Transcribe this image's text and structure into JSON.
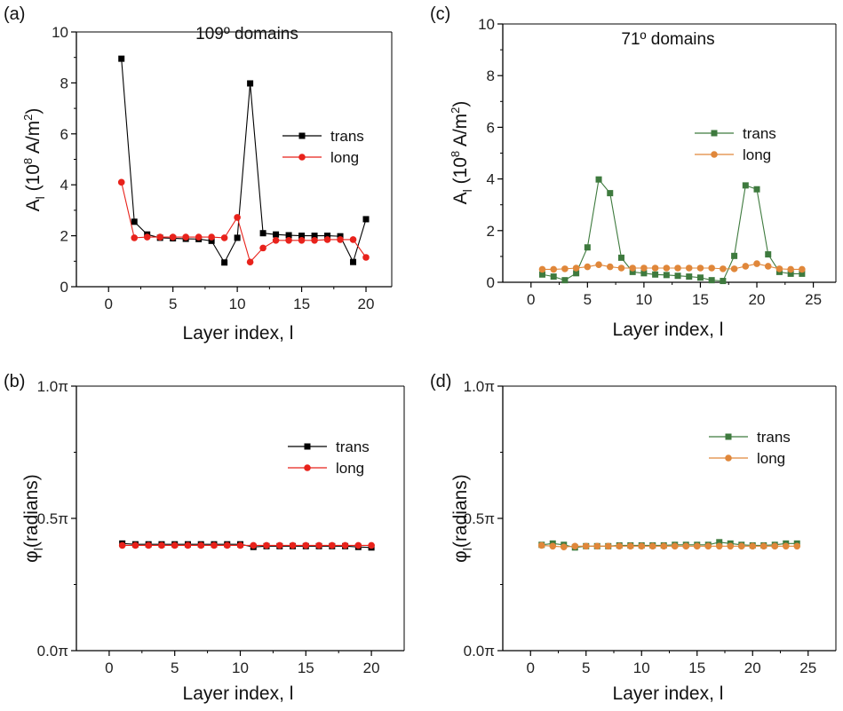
{
  "chart_data": [
    {
      "panel_label": "(a)",
      "type": "line",
      "annotation": "109º domains",
      "xlabel": "Layer index, l",
      "ylabel": "A_l (10^8 A/m^2)",
      "ylabel_parts": {
        "main": "A",
        "sub": "l",
        "rest": " (10",
        "sup": "8",
        "rest2": " A/m",
        "sup2": "2",
        "rest3": ")"
      },
      "xlim": [
        -2.5,
        22
      ],
      "ylim": [
        0,
        10
      ],
      "xticks": [
        0,
        5,
        10,
        15,
        20
      ],
      "yticks": [
        0,
        2,
        4,
        6,
        8,
        10
      ],
      "ytick_labels": [
        "0",
        "2",
        "4",
        "6",
        "8",
        "10"
      ],
      "grid": false,
      "legend_position": "right",
      "x": [
        1,
        2,
        3,
        4,
        5,
        6,
        7,
        8,
        9,
        10,
        11,
        12,
        13,
        14,
        15,
        16,
        17,
        18,
        19,
        20
      ],
      "series": [
        {
          "name": "trans",
          "color": "#000000",
          "marker": "square",
          "values": [
            8.95,
            2.55,
            2.05,
            1.92,
            1.9,
            1.88,
            1.87,
            1.8,
            0.95,
            1.92,
            7.98,
            2.1,
            2.05,
            2.02,
            2.0,
            2.0,
            2.0,
            1.98,
            0.97,
            2.65
          ]
        },
        {
          "name": "long",
          "color": "#e8221b",
          "marker": "circle",
          "values": [
            4.1,
            1.92,
            1.95,
            1.95,
            1.95,
            1.95,
            1.95,
            1.95,
            1.92,
            2.72,
            0.97,
            1.52,
            1.82,
            1.82,
            1.82,
            1.82,
            1.85,
            1.85,
            1.85,
            1.15
          ]
        }
      ]
    },
    {
      "panel_label": "(c)",
      "type": "line",
      "annotation": "71º domains",
      "xlabel": "Layer index, l",
      "ylabel": "A_l (10^8 A/m^2)",
      "ylabel_parts": {
        "main": "A",
        "sub": "l",
        "rest": " (10",
        "sup": "8",
        "rest2": " A/m",
        "sup2": "2",
        "rest3": ")"
      },
      "xlim": [
        -2.5,
        27
      ],
      "ylim": [
        0,
        10
      ],
      "xticks": [
        0,
        5,
        10,
        15,
        20,
        25
      ],
      "yticks": [
        0,
        2,
        4,
        6,
        8,
        10
      ],
      "ytick_labels": [
        "0",
        "2",
        "4",
        "6",
        "8",
        "10"
      ],
      "grid": false,
      "legend_position": "right",
      "x": [
        1,
        2,
        3,
        4,
        5,
        6,
        7,
        8,
        9,
        10,
        11,
        12,
        13,
        14,
        15,
        16,
        17,
        18,
        19,
        20,
        21,
        22,
        23,
        24
      ],
      "series": [
        {
          "name": "trans",
          "color": "#3e7a3e",
          "marker": "square",
          "values": [
            0.3,
            0.22,
            0.08,
            0.35,
            1.35,
            3.98,
            3.45,
            0.95,
            0.4,
            0.35,
            0.3,
            0.28,
            0.25,
            0.22,
            0.18,
            0.08,
            0.05,
            1.02,
            3.75,
            3.6,
            1.08,
            0.4,
            0.33,
            0.33
          ]
        },
        {
          "name": "long",
          "color": "#e0873a",
          "marker": "circle",
          "values": [
            0.5,
            0.5,
            0.52,
            0.55,
            0.6,
            0.68,
            0.6,
            0.55,
            0.55,
            0.55,
            0.55,
            0.55,
            0.55,
            0.55,
            0.55,
            0.55,
            0.52,
            0.52,
            0.62,
            0.72,
            0.62,
            0.52,
            0.5,
            0.5
          ]
        }
      ]
    },
    {
      "panel_label": "(b)",
      "type": "line",
      "annotation": "",
      "xlabel": "Layer index, l",
      "ylabel": "φ_l (radians)",
      "ylabel_parts": {
        "main": "φ",
        "sub": "l",
        "rest": "(radians)"
      },
      "xlim": [
        -2.5,
        22.5
      ],
      "ylim": [
        0,
        1
      ],
      "xticks": [
        0,
        5,
        10,
        15,
        20
      ],
      "yticks": [
        0,
        0.5,
        1
      ],
      "ytick_labels": [
        "0.0π",
        "0.5π",
        "1.0π"
      ],
      "grid": false,
      "legend_position": "right",
      "x": [
        1,
        2,
        3,
        4,
        5,
        6,
        7,
        8,
        9,
        10,
        11,
        12,
        13,
        14,
        15,
        16,
        17,
        18,
        19,
        20
      ],
      "series": [
        {
          "name": "trans",
          "color": "#000000",
          "marker": "square",
          "values": [
            0.405,
            0.402,
            0.402,
            0.402,
            0.402,
            0.402,
            0.402,
            0.402,
            0.402,
            0.402,
            0.392,
            0.395,
            0.395,
            0.395,
            0.395,
            0.395,
            0.395,
            0.395,
            0.392,
            0.39
          ]
        },
        {
          "name": "long",
          "color": "#e8221b",
          "marker": "circle",
          "values": [
            0.398,
            0.398,
            0.398,
            0.398,
            0.398,
            0.398,
            0.398,
            0.398,
            0.398,
            0.398,
            0.398,
            0.398,
            0.398,
            0.398,
            0.398,
            0.398,
            0.398,
            0.398,
            0.398,
            0.398
          ]
        }
      ]
    },
    {
      "panel_label": "(d)",
      "type": "line",
      "annotation": "",
      "xlabel": "Layer index, l",
      "ylabel": "φ_l(radians)",
      "ylabel_parts": {
        "main": "φ",
        "sub": "l",
        "rest": "(radians)"
      },
      "xlim": [
        -2.5,
        27.5
      ],
      "ylim": [
        0,
        1
      ],
      "xticks": [
        0,
        5,
        10,
        15,
        20,
        25
      ],
      "yticks": [
        0,
        0.5,
        1
      ],
      "ytick_labels": [
        "0.0π",
        "0.5π",
        "1.0π"
      ],
      "grid": false,
      "legend_position": "top-right",
      "x": [
        1,
        2,
        3,
        4,
        5,
        6,
        7,
        8,
        9,
        10,
        11,
        12,
        13,
        14,
        15,
        16,
        17,
        18,
        19,
        20,
        21,
        22,
        23,
        24
      ],
      "series": [
        {
          "name": "trans",
          "color": "#3e7a3e",
          "marker": "square",
          "values": [
            0.4,
            0.405,
            0.4,
            0.39,
            0.395,
            0.395,
            0.395,
            0.398,
            0.398,
            0.398,
            0.398,
            0.398,
            0.4,
            0.4,
            0.4,
            0.4,
            0.41,
            0.405,
            0.4,
            0.398,
            0.398,
            0.4,
            0.405,
            0.405
          ]
        },
        {
          "name": "long",
          "color": "#e0873a",
          "marker": "circle",
          "values": [
            0.398,
            0.395,
            0.392,
            0.395,
            0.395,
            0.395,
            0.395,
            0.395,
            0.395,
            0.395,
            0.395,
            0.395,
            0.395,
            0.395,
            0.395,
            0.395,
            0.395,
            0.395,
            0.395,
            0.395,
            0.395,
            0.395,
            0.395,
            0.395
          ]
        }
      ]
    }
  ]
}
